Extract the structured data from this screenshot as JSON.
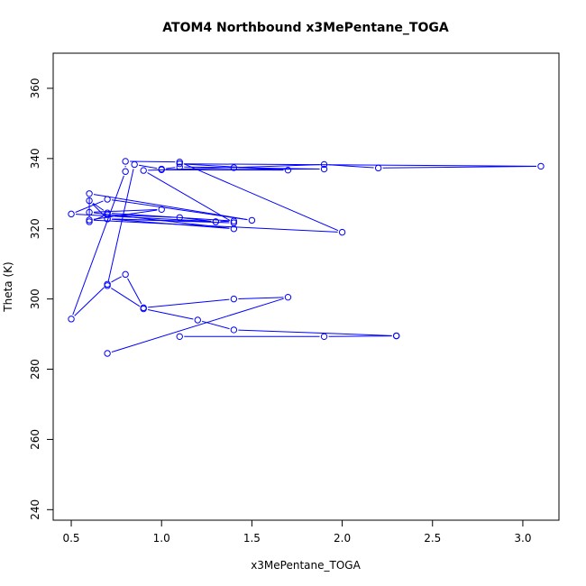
{
  "chart_data": {
    "type": "line",
    "title": "ATOM4 Northbound x3MePentane_TOGA",
    "xlabel": "x3MePentane_TOGA",
    "ylabel": "Theta (K)",
    "xlim": [
      0.4,
      3.2
    ],
    "ylim": [
      237,
      370
    ],
    "x_ticks": [
      0.5,
      1.0,
      1.5,
      2.0,
      2.5,
      3.0
    ],
    "x_tick_labels": [
      "0.5",
      "1.0",
      "1.5",
      "2.0",
      "2.5",
      "3.0"
    ],
    "y_ticks": [
      240,
      260,
      280,
      300,
      320,
      340,
      360
    ],
    "y_tick_labels": [
      "240",
      "260",
      "280",
      "300",
      "320",
      "340",
      "360"
    ],
    "grid": false,
    "series": [
      {
        "color": "#0000ff",
        "marker": "open-circle",
        "x": [
          0.7,
          1.7,
          1.4,
          0.9,
          0.8,
          0.7,
          0.5,
          0.8,
          0.8,
          1.1,
          2.0,
          0.6,
          1.0,
          0.6,
          1.4,
          0.7,
          1.3,
          0.5,
          0.7,
          1.5,
          0.6,
          0.6,
          0.7,
          1.1,
          1.3,
          1.4,
          0.7,
          0.6,
          0.7,
          1.4,
          0.9,
          1.9,
          2.2,
          3.1,
          1.1,
          1.7,
          1.0,
          1.9,
          1.4,
          1.1,
          1.0,
          0.85,
          0.7,
          0.9,
          1.2,
          1.4,
          2.3,
          2.3,
          1.9,
          1.1
        ],
        "y": [
          284.5,
          300.5,
          300.0,
          297.5,
          307.0,
          304.2,
          294.3,
          336.3,
          339.2,
          339.0,
          319.0,
          322.5,
          325.5,
          324.7,
          320.0,
          322.8,
          322.0,
          324.2,
          328.4,
          322.4,
          330.0,
          322.0,
          324.0,
          323.2,
          322.0,
          322.2,
          324.5,
          328.0,
          322.8,
          321.7,
          336.6,
          338.3,
          337.3,
          337.8,
          338.5,
          336.7,
          336.8,
          337.0,
          337.4,
          337.6,
          337.0,
          338.3,
          303.8,
          297.2,
          294.0,
          291.2,
          289.5,
          289.5,
          289.3,
          289.3
        ]
      }
    ]
  }
}
